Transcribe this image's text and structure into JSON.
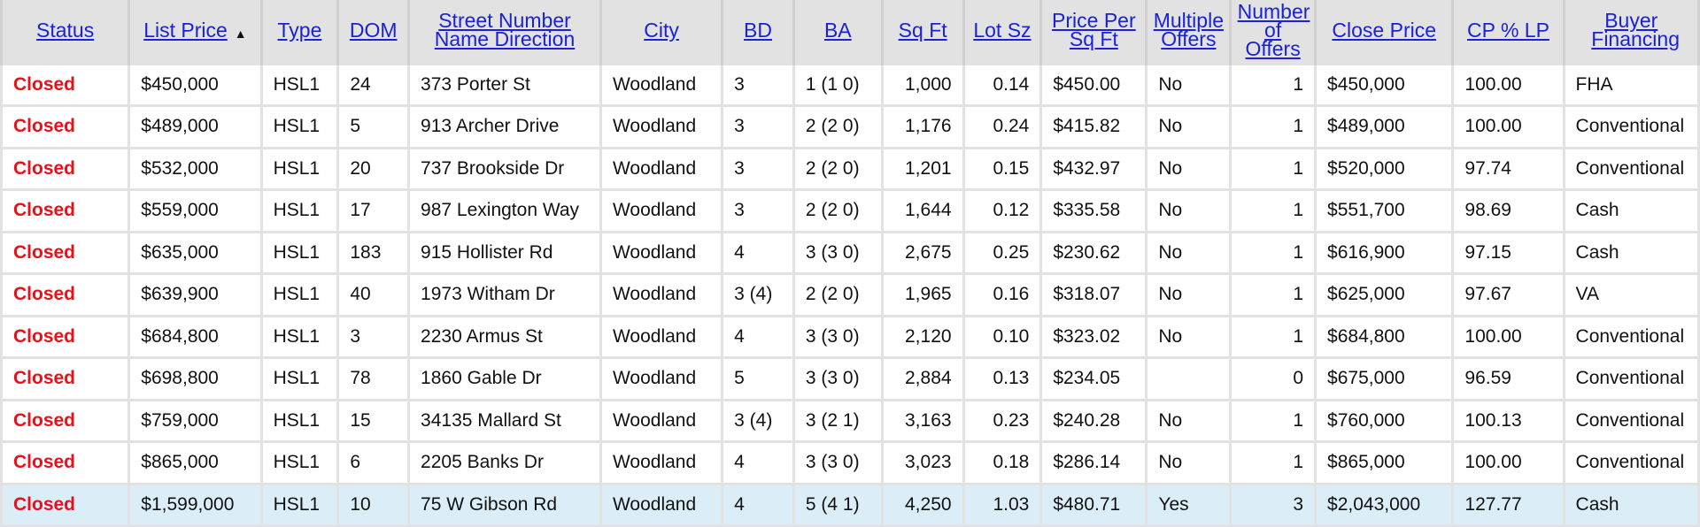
{
  "table": {
    "columns": [
      "Status",
      "List Price",
      "Type",
      "DOM",
      "Street Number Name Direction",
      "City",
      "BD",
      "BA",
      "Sq Ft",
      "Lot Sz",
      "Price Per Sq Ft",
      "Multiple Offers",
      "Number of Offers",
      "Close Price",
      "CP % LP",
      "Buyer Financing"
    ],
    "sort_indicator": "▲",
    "rows": [
      [
        "Closed",
        "$450,000",
        "HSL1",
        "24",
        "373 Porter St",
        "Woodland",
        "3",
        "1 (1 0)",
        "1,000",
        "0.14",
        "$450.00",
        "No",
        "1",
        "$450,000",
        "100.00",
        "FHA"
      ],
      [
        "Closed",
        "$489,000",
        "HSL1",
        "5",
        "913 Archer Drive",
        "Woodland",
        "3",
        "2 (2 0)",
        "1,176",
        "0.24",
        "$415.82",
        "No",
        "1",
        "$489,000",
        "100.00",
        "Conventional"
      ],
      [
        "Closed",
        "$532,000",
        "HSL1",
        "20",
        "737 Brookside Dr",
        "Woodland",
        "3",
        "2 (2 0)",
        "1,201",
        "0.15",
        "$432.97",
        "No",
        "1",
        "$520,000",
        "97.74",
        "Conventional"
      ],
      [
        "Closed",
        "$559,000",
        "HSL1",
        "17",
        "987 Lexington Way",
        "Woodland",
        "3",
        "2 (2 0)",
        "1,644",
        "0.12",
        "$335.58",
        "No",
        "1",
        "$551,700",
        "98.69",
        "Cash"
      ],
      [
        "Closed",
        "$635,000",
        "HSL1",
        "183",
        "915 Hollister Rd",
        "Woodland",
        "4",
        "3 (3 0)",
        "2,675",
        "0.25",
        "$230.62",
        "No",
        "1",
        "$616,900",
        "97.15",
        "Cash"
      ],
      [
        "Closed",
        "$639,900",
        "HSL1",
        "40",
        "1973 Witham Dr",
        "Woodland",
        "3 (4)",
        "2 (2 0)",
        "1,965",
        "0.16",
        "$318.07",
        "No",
        "1",
        "$625,000",
        "97.67",
        "VA"
      ],
      [
        "Closed",
        "$684,800",
        "HSL1",
        "3",
        "2230 Armus St",
        "Woodland",
        "4",
        "3 (3 0)",
        "2,120",
        "0.10",
        "$323.02",
        "No",
        "1",
        "$684,800",
        "100.00",
        "Conventional"
      ],
      [
        "Closed",
        "$698,800",
        "HSL1",
        "78",
        "1860 Gable Dr",
        "Woodland",
        "5",
        "3 (3 0)",
        "2,884",
        "0.13",
        "$234.05",
        "",
        "0",
        "$675,000",
        "96.59",
        "Conventional"
      ],
      [
        "Closed",
        "$759,000",
        "HSL1",
        "15",
        "34135 Mallard St",
        "Woodland",
        "3 (4)",
        "3 (2 1)",
        "3,163",
        "0.23",
        "$240.28",
        "No",
        "1",
        "$760,000",
        "100.13",
        "Conventional"
      ],
      [
        "Closed",
        "$865,000",
        "HSL1",
        "6",
        "2205 Banks Dr",
        "Woodland",
        "4",
        "3 (3 0)",
        "3,023",
        "0.18",
        "$286.14",
        "No",
        "1",
        "$865,000",
        "100.00",
        "Conventional"
      ],
      [
        "Closed",
        "$1,599,000",
        "HSL1",
        "10",
        "75 W Gibson Rd",
        "Woodland",
        "4",
        "5 (4 1)",
        "4,250",
        "1.03",
        "$480.71",
        "Yes",
        "3",
        "$2,043,000",
        "127.77",
        "Cash"
      ]
    ]
  }
}
